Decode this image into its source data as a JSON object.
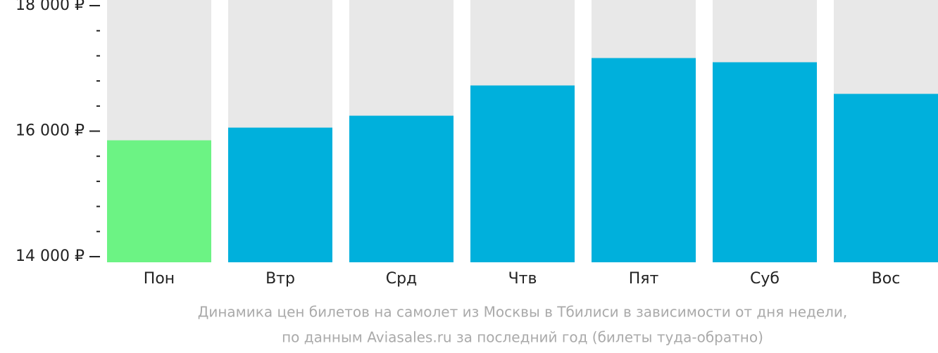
{
  "chart_data": {
    "type": "bar",
    "title": "Динамика цен билетов на самолет из Москвы в Тбилиси в зависимости от дня недели,",
    "subtitle": "по данным Aviasales.ru за последний год (билеты туда-обратно)",
    "categories": [
      "Пон",
      "Втр",
      "Срд",
      "Чтв",
      "Пят",
      "Суб",
      "Вос"
    ],
    "values": [
      15854,
      16056,
      16246,
      16728,
      17165,
      17098,
      16594
    ],
    "colors": [
      "#6cf384",
      "#00b0dc",
      "#00b0dc",
      "#00b0dc",
      "#00b0dc",
      "#00b0dc",
      "#00b0dc"
    ],
    "background_color": "#e8e8e8",
    "ylim": [
      13910,
      18090
    ],
    "yticks": [
      {
        "value": 14000,
        "label": "14 000 ₽"
      },
      {
        "value": 16000,
        "label": "16 000 ₽"
      },
      {
        "value": 18000,
        "label": "18 000 ₽"
      }
    ],
    "minor_yticks": [
      14400,
      14800,
      15200,
      15600,
      16400,
      16800,
      17200,
      17600
    ]
  }
}
